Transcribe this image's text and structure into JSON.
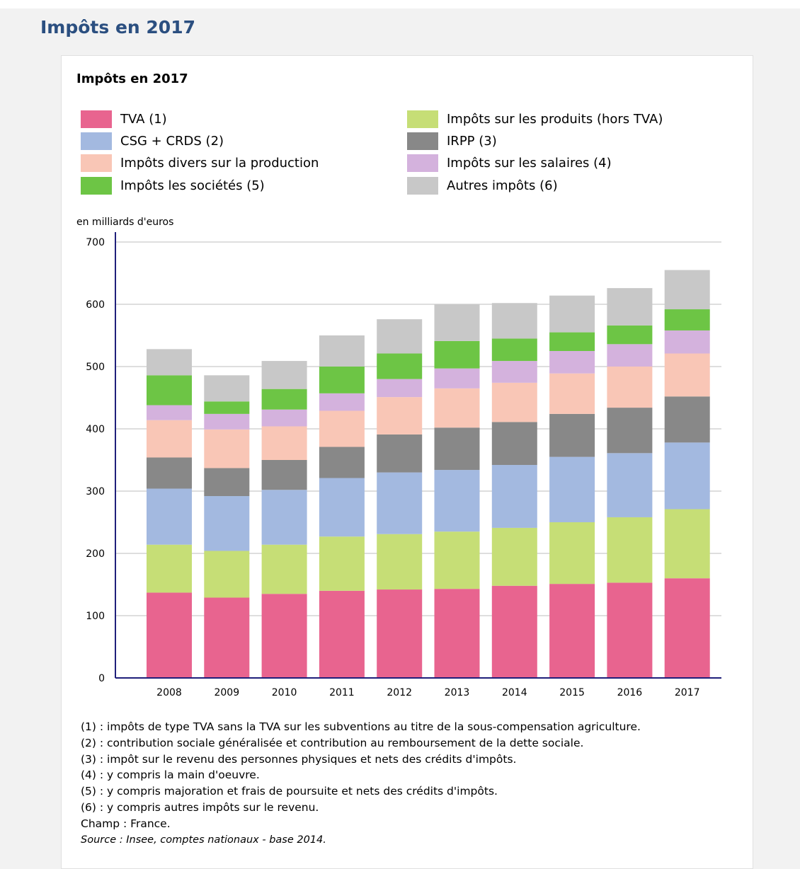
{
  "page": {
    "title": "Impôts en 2017"
  },
  "figure": {
    "title": "Impôts en 2017",
    "unit_label": "en milliards d'euros",
    "notes": [
      "(1) : impôts de type TVA sans la TVA sur les subventions au titre de la sous-compensation agriculture.",
      "(2) : contribution sociale généralisée et  contribution au remboursement de la dette sociale.",
      "(3) : impôt sur le revenu des personnes physiques et nets des crédits d'impôts.",
      "(4) : y compris la main d'oeuvre.",
      "(5) : y compris majoration et frais de poursuite et nets des crédits d'impôts.",
      "(6) : y compris autres impôts sur le revenu.",
      "Champ : France."
    ],
    "source": "Source : Insee, comptes nationaux - base 2014."
  },
  "chart_data": {
    "type": "bar",
    "stacked": true,
    "title": "Impôts en 2017",
    "ylabel": "en milliards d'euros",
    "xlabel": "",
    "ylim": [
      0,
      700
    ],
    "yticks": [
      0,
      100,
      200,
      300,
      400,
      500,
      600,
      700
    ],
    "grid": true,
    "legend_position": "top",
    "categories": [
      "2008",
      "2009",
      "2010",
      "2011",
      "2012",
      "2013",
      "2014",
      "2015",
      "2016",
      "2017"
    ],
    "series": [
      {
        "name": "TVA (1)",
        "color": "#e8648f",
        "values": [
          137,
          129,
          135,
          140,
          142,
          143,
          148,
          151,
          153,
          160
        ]
      },
      {
        "name": "Impôts sur les produits (hors TVA)",
        "color": "#c6de76",
        "values": [
          77,
          75,
          79,
          87,
          89,
          92,
          93,
          99,
          105,
          111
        ]
      },
      {
        "name": "CSG + CRDS (2)",
        "color": "#a3b9e0",
        "values": [
          90,
          88,
          88,
          94,
          99,
          99,
          101,
          105,
          103,
          107
        ]
      },
      {
        "name": "IRPP (3)",
        "color": "#888888",
        "values": [
          50,
          45,
          48,
          50,
          61,
          68,
          69,
          69,
          73,
          74
        ]
      },
      {
        "name": "Impôts divers sur la production",
        "color": "#f9c6b6",
        "values": [
          60,
          62,
          54,
          58,
          60,
          63,
          63,
          65,
          66,
          69
        ]
      },
      {
        "name": "Impôts sur les salaires (4)",
        "color": "#d4b2dd",
        "values": [
          24,
          25,
          27,
          28,
          29,
          32,
          35,
          36,
          36,
          37
        ]
      },
      {
        "name": "Impôts les sociétés (5)",
        "color": "#6dc545",
        "values": [
          48,
          20,
          33,
          43,
          41,
          44,
          36,
          30,
          30,
          34
        ]
      },
      {
        "name": "Autres impôts (6)",
        "color": "#c8c8c8",
        "values": [
          42,
          42,
          45,
          50,
          55,
          59,
          57,
          59,
          60,
          63
        ]
      }
    ]
  }
}
